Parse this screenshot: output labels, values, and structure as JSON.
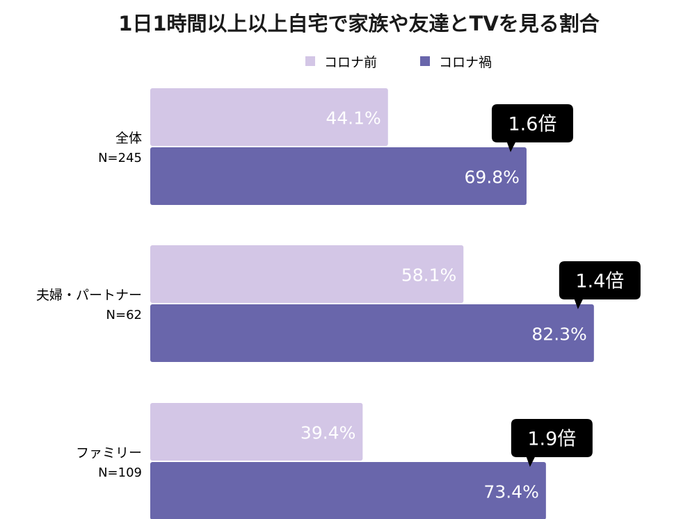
{
  "chart_data": {
    "type": "bar",
    "orientation": "horizontal",
    "title": "1日1時間以上以上自宅で家族や友達とTVを見る割合",
    "categories": [
      "全体",
      "夫婦・パートナー",
      "ファミリー"
    ],
    "category_n_labels": [
      "N=245",
      "N=62",
      "N=109"
    ],
    "series": [
      {
        "name": "コロナ前",
        "values": [
          44.1,
          58.1,
          39.4
        ],
        "labels": [
          "44.1%",
          "58.1%",
          "39.4%"
        ],
        "color": "#d3c6e6"
      },
      {
        "name": "コロナ禍",
        "values": [
          69.8,
          82.3,
          73.4
        ],
        "labels": [
          "69.8%",
          "82.3%",
          "73.4%"
        ],
        "color": "#6966ab"
      }
    ],
    "annotations": [
      "1.6倍",
      "1.4倍",
      "1.9倍"
    ],
    "xlim": [
      0,
      100
    ],
    "grid": false,
    "legend_position": "top-right",
    "colors": {
      "callout_bg": "#000000",
      "callout_text": "#ffffff",
      "bar_label_text": "#ffffff",
      "axis_text": "#000000"
    }
  }
}
